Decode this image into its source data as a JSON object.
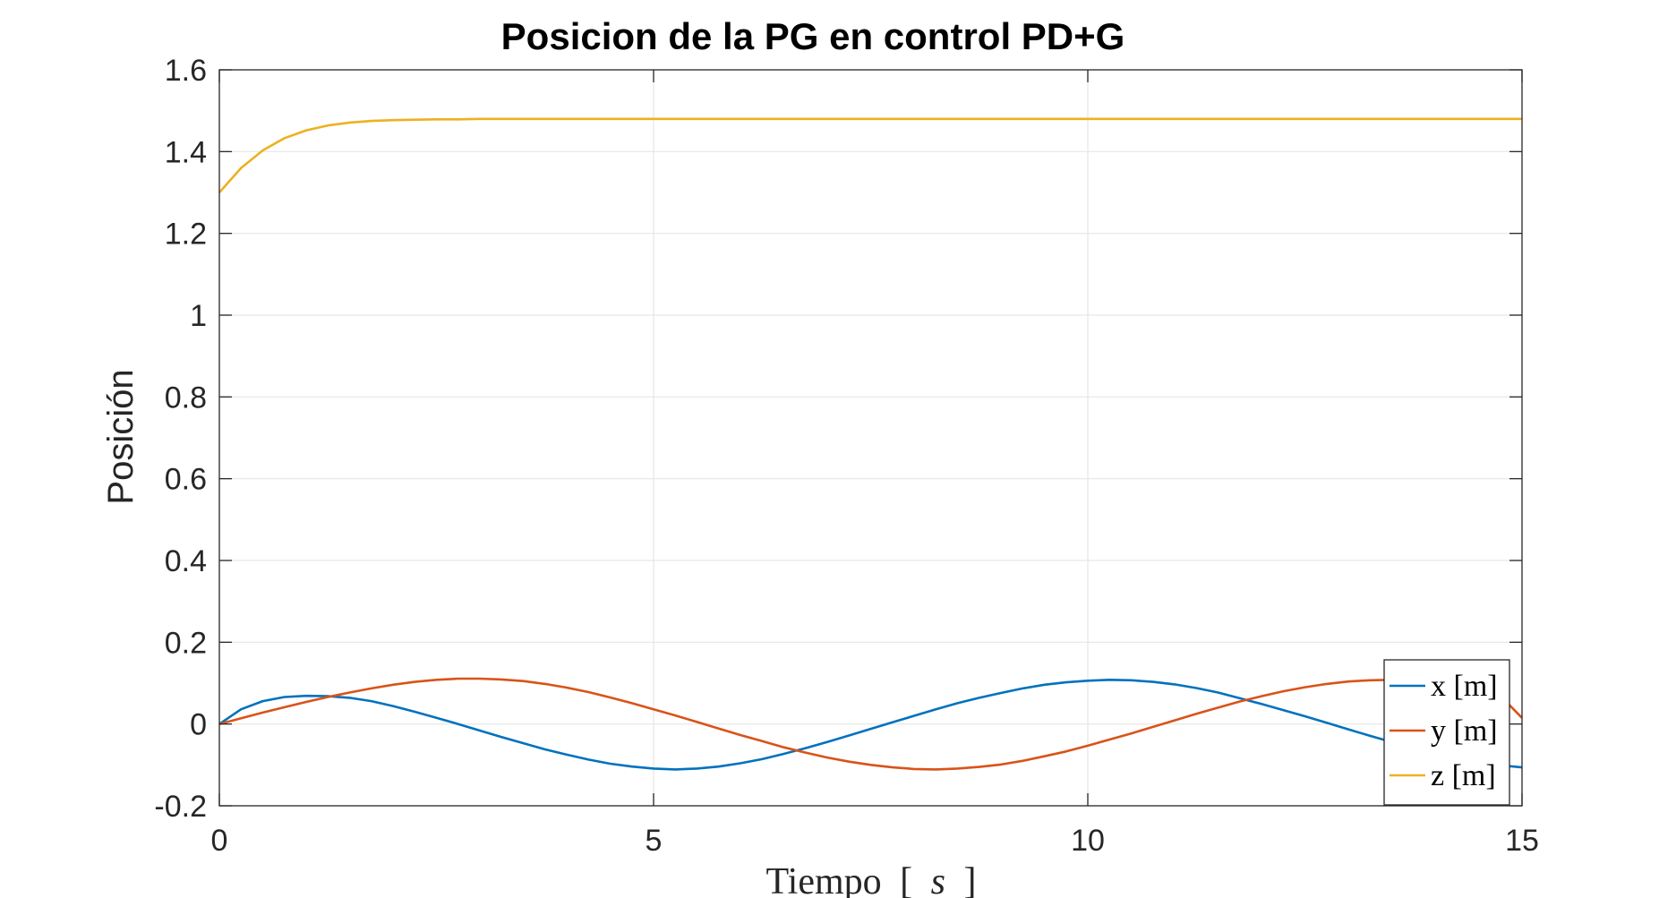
{
  "chart_data": {
    "type": "line",
    "title": "Posicion de la PG en control PD+G",
    "xlabel": "Tiempo",
    "xlabel_unit_prefix": "[",
    "xlabel_unit": "s",
    "xlabel_unit_suffix": "]",
    "ylabel": "Posición",
    "xlim": [
      0,
      15
    ],
    "ylim": [
      -0.2,
      1.6
    ],
    "xticks": [
      0,
      5,
      10,
      15
    ],
    "xtick_labels": [
      "0",
      "5",
      "10",
      "15"
    ],
    "yticks": [
      -0.2,
      0,
      0.2,
      0.4,
      0.6,
      0.8,
      1,
      1.2,
      1.4,
      1.6
    ],
    "ytick_labels": [
      "-0.2",
      "0",
      "0.2",
      "0.4",
      "0.6",
      "0.8",
      "1",
      "1.2",
      "1.4",
      "1.6"
    ],
    "grid": true,
    "legend_position": "bottom-right",
    "x": [
      0,
      0.25,
      0.5,
      0.75,
      1,
      1.25,
      1.5,
      1.75,
      2,
      2.25,
      2.5,
      2.75,
      3,
      3.25,
      3.5,
      3.75,
      4,
      4.25,
      4.5,
      4.75,
      5,
      5.25,
      5.5,
      5.75,
      6,
      6.25,
      6.5,
      6.75,
      7,
      7.25,
      7.5,
      7.75,
      8,
      8.25,
      8.5,
      8.75,
      9,
      9.25,
      9.5,
      9.75,
      10,
      10.25,
      10.5,
      10.75,
      11,
      11.25,
      11.5,
      11.75,
      12,
      12.25,
      12.5,
      12.75,
      13,
      13.25,
      13.5,
      13.75,
      14,
      14.25,
      14.5,
      14.75,
      15
    ],
    "series": [
      {
        "name": "x [m]",
        "color": "#0072BD",
        "values": [
          0,
          0.036,
          0.056,
          0.066,
          0.069,
          0.068,
          0.064,
          0.056,
          0.044,
          0.03,
          0.015,
          0.0,
          -0.016,
          -0.032,
          -0.047,
          -0.062,
          -0.075,
          -0.087,
          -0.097,
          -0.104,
          -0.109,
          -0.111,
          -0.109,
          -0.104,
          -0.096,
          -0.086,
          -0.073,
          -0.059,
          -0.044,
          -0.028,
          -0.012,
          0.004,
          0.02,
          0.036,
          0.051,
          0.064,
          0.076,
          0.087,
          0.096,
          0.102,
          0.106,
          0.108,
          0.107,
          0.103,
          0.097,
          0.088,
          0.077,
          0.063,
          0.049,
          0.034,
          0.019,
          0.003,
          -0.013,
          -0.029,
          -0.044,
          -0.058,
          -0.071,
          -0.083,
          -0.093,
          -0.101,
          -0.106
        ]
      },
      {
        "name": "y [m]",
        "color": "#D95319",
        "values": [
          0,
          0.014,
          0.028,
          0.041,
          0.054,
          0.066,
          0.077,
          0.087,
          0.096,
          0.103,
          0.108,
          0.111,
          0.111,
          0.109,
          0.105,
          0.098,
          0.089,
          0.078,
          0.065,
          0.051,
          0.036,
          0.021,
          0.005,
          -0.011,
          -0.027,
          -0.042,
          -0.057,
          -0.07,
          -0.082,
          -0.092,
          -0.1,
          -0.106,
          -0.11,
          -0.111,
          -0.109,
          -0.105,
          -0.099,
          -0.09,
          -0.079,
          -0.067,
          -0.053,
          -0.038,
          -0.023,
          -0.007,
          0.009,
          0.025,
          0.04,
          0.055,
          0.068,
          0.08,
          0.09,
          0.098,
          0.104,
          0.107,
          0.108,
          0.106,
          0.101,
          0.093,
          0.082,
          0.069,
          0.015
        ]
      },
      {
        "name": "z [m]",
        "color": "#EDB120",
        "values": [
          1.3,
          1.36,
          1.403,
          1.433,
          1.452,
          1.464,
          1.471,
          1.475,
          1.477,
          1.478,
          1.479,
          1.479,
          1.48,
          1.48,
          1.48,
          1.48,
          1.48,
          1.48,
          1.48,
          1.48,
          1.48,
          1.48,
          1.48,
          1.48,
          1.48,
          1.48,
          1.48,
          1.48,
          1.48,
          1.48,
          1.48,
          1.48,
          1.48,
          1.48,
          1.48,
          1.48,
          1.48,
          1.48,
          1.48,
          1.48,
          1.48,
          1.48,
          1.48,
          1.48,
          1.48,
          1.48,
          1.48,
          1.48,
          1.48,
          1.48,
          1.48,
          1.48,
          1.48,
          1.48,
          1.48,
          1.48,
          1.48,
          1.48,
          1.48,
          1.48,
          1.48
        ]
      }
    ]
  }
}
